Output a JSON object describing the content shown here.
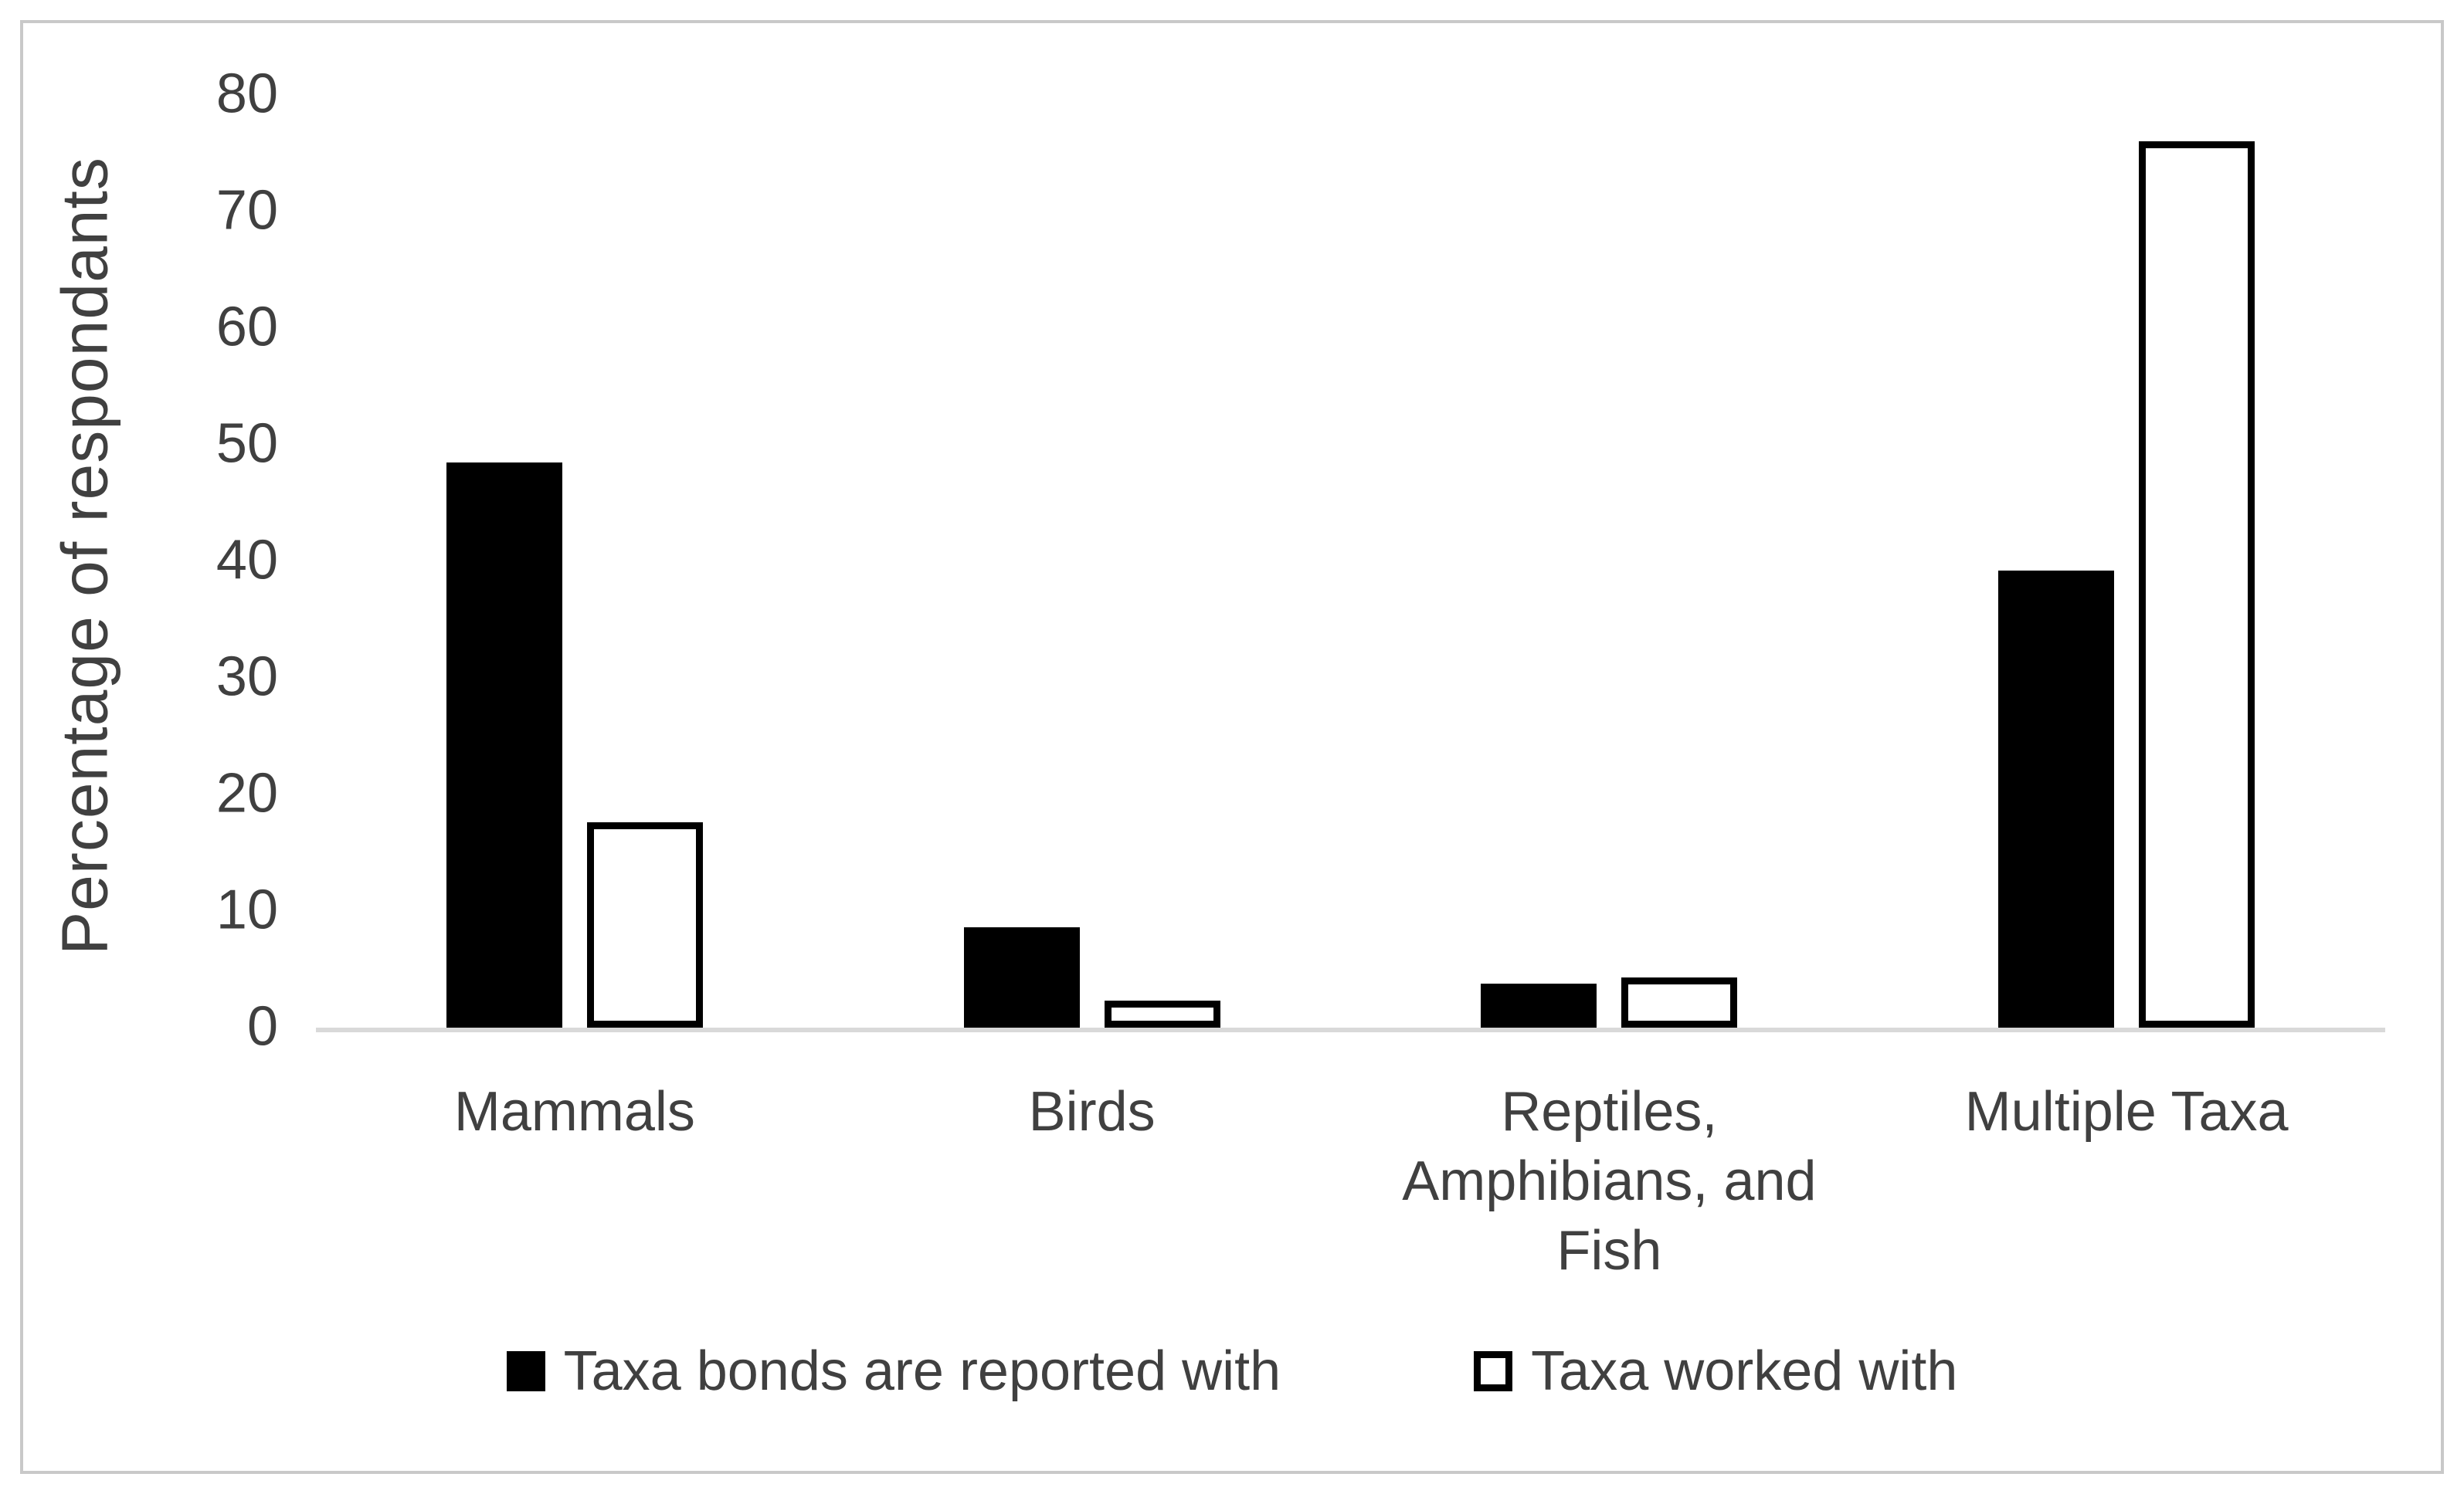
{
  "chart_data": {
    "type": "bar",
    "title": "",
    "ylabel": "Percentage of respondants",
    "xlabel": "",
    "categories": [
      "Mammals",
      "Birds",
      "Reptiles,\nAmphibians, and\nFish",
      "Multiple Taxa"
    ],
    "series": [
      {
        "name": "Taxa bonds are reported with",
        "style": "filled",
        "values": [
          48.5,
          8.6,
          3.8,
          39.2
        ]
      },
      {
        "name": "Taxa worked with",
        "style": "outline",
        "values": [
          17.6,
          2.3,
          4.3,
          76
        ]
      }
    ],
    "yticks": [
      0,
      10,
      20,
      30,
      40,
      50,
      60,
      70,
      80
    ],
    "ylim": [
      0,
      80
    ],
    "grid": false,
    "legend_position": "bottom"
  },
  "colors": {
    "bar_fill": "#000000",
    "bar_outline": "#000000",
    "text": "#404040",
    "axis_line": "#d9d9d9",
    "frame_border": "#c9c9c9",
    "background": "#ffffff"
  }
}
